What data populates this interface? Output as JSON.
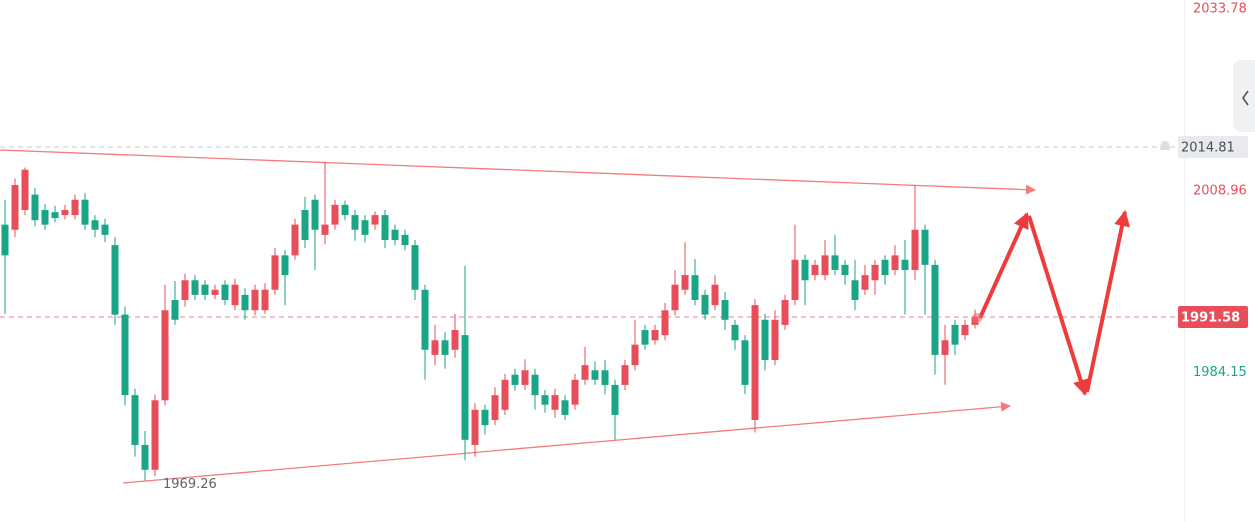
{
  "chart_data": {
    "type": "candlestick",
    "up_color": "#e84e5a",
    "down_color": "#1aa586",
    "ylim": [
      1963.57,
      2034.89
    ],
    "candles": [
      [
        2004.2,
        2007.6,
        1992.0,
        2000.0
      ],
      [
        2003.5,
        2010.5,
        2002.5,
        2009.6
      ],
      [
        2006.2,
        2012.0,
        2005.5,
        2011.7
      ],
      [
        2008.3,
        2009.2,
        2004.0,
        2004.8
      ],
      [
        2006.2,
        2007.0,
        2003.5,
        2004.2
      ],
      [
        2005.9,
        2006.8,
        2004.5,
        2005.1
      ],
      [
        2005.5,
        2006.9,
        2004.9,
        2006.2
      ],
      [
        2005.5,
        2008.3,
        2004.9,
        2007.6
      ],
      [
        2007.6,
        2008.5,
        2003.5,
        2004.2
      ],
      [
        2004.8,
        2005.5,
        2002.5,
        2003.5
      ],
      [
        2004.2,
        2005.0,
        2001.8,
        2002.8
      ],
      [
        2001.4,
        2002.5,
        1990.5,
        1991.9
      ],
      [
        1991.9,
        1993.0,
        1979.5,
        1980.9
      ],
      [
        1980.9,
        1981.8,
        1972.5,
        1974.1
      ],
      [
        1974.1,
        1976.0,
        1969.26,
        1970.7
      ],
      [
        1970.7,
        1981.0,
        1969.8,
        1980.2
      ],
      [
        1980.2,
        1996.0,
        1979.5,
        1992.5
      ],
      [
        1993.9,
        1996.5,
        1990.5,
        1991.2
      ],
      [
        1993.9,
        1997.5,
        1993.0,
        1996.6
      ],
      [
        1996.6,
        1997.3,
        1993.9,
        1994.6
      ],
      [
        1996.0,
        1996.6,
        1993.9,
        1994.6
      ],
      [
        1994.6,
        1996.0,
        1994.0,
        1995.3
      ],
      [
        1996.0,
        1996.6,
        1993.2,
        1993.9
      ],
      [
        1993.2,
        1996.8,
        1992.5,
        1996.0
      ],
      [
        1994.6,
        1995.5,
        1991.2,
        1992.5
      ],
      [
        1992.5,
        1996.0,
        1991.8,
        1995.3
      ],
      [
        1992.5,
        1996.2,
        1992.0,
        1995.3
      ],
      [
        1995.3,
        2001.0,
        1994.6,
        2000.0
      ],
      [
        2000.0,
        2000.7,
        1993.2,
        1997.3
      ],
      [
        2000.0,
        2005.0,
        1999.4,
        2004.2
      ],
      [
        2006.2,
        2008.0,
        2001.0,
        2002.1
      ],
      [
        2007.6,
        2008.3,
        1998.0,
        2003.5
      ],
      [
        2002.8,
        2012.8,
        2001.5,
        2004.2
      ],
      [
        2004.2,
        2007.6,
        2003.5,
        2006.9
      ],
      [
        2006.9,
        2007.5,
        2004.8,
        2005.5
      ],
      [
        2005.5,
        2006.2,
        2002.0,
        2003.5
      ],
      [
        2004.8,
        2005.5,
        2001.8,
        2002.8
      ],
      [
        2004.2,
        2006.0,
        2003.5,
        2005.5
      ],
      [
        2005.5,
        2006.2,
        2001.0,
        2002.1
      ],
      [
        2003.5,
        2004.2,
        2001.4,
        2002.1
      ],
      [
        2002.8,
        2003.5,
        2000.7,
        2001.4
      ],
      [
        2001.4,
        2002.1,
        1993.9,
        1995.3
      ],
      [
        1995.3,
        1996.0,
        1983.0,
        1987.1
      ],
      [
        1986.4,
        1990.5,
        1985.0,
        1988.4
      ],
      [
        1988.4,
        1989.5,
        1984.5,
        1986.4
      ],
      [
        1987.1,
        1992.0,
        1986.0,
        1989.8
      ],
      [
        1989.1,
        1998.6,
        1972.0,
        1974.8
      ],
      [
        1974.1,
        1979.8,
        1972.5,
        1978.9
      ],
      [
        1978.9,
        1979.6,
        1975.5,
        1976.8
      ],
      [
        1977.5,
        1982.0,
        1976.8,
        1980.9
      ],
      [
        1978.9,
        1983.8,
        1978.2,
        1983.0
      ],
      [
        1983.7,
        1984.5,
        1981.5,
        1982.3
      ],
      [
        1982.3,
        1985.8,
        1981.6,
        1984.3
      ],
      [
        1983.7,
        1984.5,
        1978.9,
        1980.9
      ],
      [
        1980.9,
        1981.6,
        1978.5,
        1979.6
      ],
      [
        1978.9,
        1981.8,
        1977.8,
        1980.9
      ],
      [
        1980.2,
        1980.9,
        1977.5,
        1978.2
      ],
      [
        1979.6,
        1983.8,
        1978.9,
        1983.0
      ],
      [
        1983.0,
        1987.5,
        1982.3,
        1985.0
      ],
      [
        1984.3,
        1985.5,
        1982.3,
        1983.0
      ],
      [
        1984.3,
        1985.7,
        1981.0,
        1982.3
      ],
      [
        1982.3,
        1983.0,
        1974.8,
        1978.2
      ],
      [
        1982.3,
        1985.7,
        1981.6,
        1985.0
      ],
      [
        1985.0,
        1991.2,
        1984.3,
        1987.8
      ],
      [
        1989.8,
        1990.5,
        1987.1,
        1987.8
      ],
      [
        1988.4,
        1990.5,
        1987.8,
        1989.8
      ],
      [
        1989.1,
        1993.5,
        1988.4,
        1992.5
      ],
      [
        1992.5,
        1998.0,
        1991.8,
        1996.0
      ],
      [
        1995.3,
        2001.8,
        1994.6,
        1997.3
      ],
      [
        1997.3,
        1999.5,
        1993.2,
        1993.9
      ],
      [
        1994.6,
        1995.3,
        1991.2,
        1991.9
      ],
      [
        1993.2,
        1997.3,
        1992.5,
        1996.0
      ],
      [
        1993.9,
        1995.0,
        1989.8,
        1991.2
      ],
      [
        1990.5,
        1991.2,
        1987.1,
        1988.4
      ],
      [
        1988.4,
        1989.1,
        1981.0,
        1982.3
      ],
      [
        1977.5,
        1994.0,
        1975.8,
        1993.2
      ],
      [
        1991.2,
        1992.0,
        1984.3,
        1985.7
      ],
      [
        1985.7,
        1992.5,
        1985.0,
        1991.2
      ],
      [
        1990.5,
        1994.6,
        1989.8,
        1993.9
      ],
      [
        1993.9,
        2004.2,
        1993.2,
        1999.4
      ],
      [
        1999.4,
        2000.1,
        1993.2,
        1996.6
      ],
      [
        1997.3,
        1999.4,
        1996.6,
        1998.7
      ],
      [
        1997.3,
        2002.1,
        1996.6,
        2000.0
      ],
      [
        2000.0,
        2002.8,
        1997.3,
        1998.0
      ],
      [
        1998.7,
        1999.4,
        1996.0,
        1997.3
      ],
      [
        1996.6,
        1999.4,
        1992.5,
        1993.9
      ],
      [
        1995.3,
        1998.7,
        1994.6,
        1997.3
      ],
      [
        1996.6,
        1999.4,
        1994.6,
        1998.7
      ],
      [
        1999.4,
        2000.0,
        1996.0,
        1997.3
      ],
      [
        1998.0,
        2001.4,
        1997.3,
        2000.0
      ],
      [
        1999.4,
        2002.1,
        1991.9,
        1998.0
      ],
      [
        1998.0,
        2009.6,
        1996.6,
        2003.5
      ],
      [
        2003.5,
        2004.2,
        1991.9,
        1998.7
      ],
      [
        1998.7,
        1999.4,
        1983.7,
        1986.4
      ],
      [
        1986.4,
        1990.5,
        1982.3,
        1988.4
      ],
      [
        1990.5,
        1991.2,
        1986.4,
        1987.8
      ],
      [
        1989.1,
        1991.2,
        1988.4,
        1990.5
      ],
      [
        1990.5,
        1992.6,
        1990.0,
        1991.6
      ]
    ],
    "price_labels": [
      {
        "value": 2033.78,
        "color": "#e84e5a"
      },
      {
        "value": 2008.96,
        "color": "#e84e5a"
      },
      {
        "value": 1984.15,
        "color": "#1aa586"
      }
    ],
    "price_lines": [
      {
        "value": 2014.81,
        "color": "#c4c8cc",
        "label_bg": "#e8eaed",
        "label_color": "#4a4f55"
      },
      {
        "value": 1991.58,
        "color": "#e8868d",
        "label_bg": "#e84e5a",
        "label_color": "#ffffff"
      }
    ],
    "low_label": 1969.26
  }
}
